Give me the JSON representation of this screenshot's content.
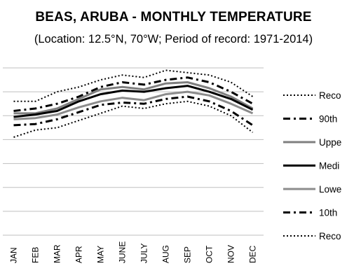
{
  "chart_data": {
    "type": "line",
    "title": "BEAS, ARUBA - MONTHLY TEMPERATURE",
    "subtitle": "(Location: 12.5°N, 70°W; Period of record: 1971-2014)",
    "categories": [
      "JAN",
      "FEB",
      "MAR",
      "APR",
      "MAY",
      "JUNE",
      "JULY",
      "AUG",
      "SEP",
      "OCT",
      "NOV",
      "DEC"
    ],
    "ylim": [
      0,
      7
    ],
    "grid": true,
    "legend_position": "right",
    "series": [
      {
        "name": "Reco",
        "style": "dotted",
        "color": "#000000",
        "width": 2,
        "values": [
          5.6,
          5.6,
          6.0,
          6.2,
          6.5,
          6.7,
          6.6,
          6.9,
          6.8,
          6.7,
          6.4,
          5.8
        ]
      },
      {
        "name": "90th",
        "style": "dashdot",
        "color": "#000000",
        "width": 3,
        "values": [
          5.2,
          5.3,
          5.5,
          5.8,
          6.2,
          6.4,
          6.3,
          6.5,
          6.6,
          6.4,
          6.0,
          5.5
        ]
      },
      {
        "name": "Uppe",
        "style": "solid",
        "color": "#7f7f7f",
        "width": 3,
        "values": [
          5.1,
          5.1,
          5.3,
          5.7,
          6.1,
          6.2,
          6.1,
          6.35,
          6.4,
          6.15,
          5.8,
          5.3
        ]
      },
      {
        "name": "Medi",
        "style": "solid",
        "color": "#000000",
        "width": 3,
        "values": [
          4.95,
          5.05,
          5.2,
          5.6,
          5.9,
          6.05,
          6.0,
          6.15,
          6.25,
          6.0,
          5.7,
          5.25
        ]
      },
      {
        "name": "Lowe",
        "style": "solid",
        "color": "#8c8c8c",
        "width": 3,
        "values": [
          4.85,
          4.9,
          5.05,
          5.35,
          5.6,
          5.75,
          5.65,
          5.9,
          6.0,
          5.85,
          5.5,
          5.1
        ]
      },
      {
        "name": "10th",
        "style": "dashdot",
        "color": "#000000",
        "width": 3,
        "values": [
          4.6,
          4.65,
          4.85,
          5.15,
          5.45,
          5.55,
          5.5,
          5.7,
          5.8,
          5.6,
          5.2,
          4.6
        ]
      },
      {
        "name": "Reco",
        "style": "dotted",
        "color": "#000000",
        "width": 2,
        "values": [
          4.1,
          4.4,
          4.5,
          4.8,
          5.1,
          5.4,
          5.3,
          5.5,
          5.6,
          5.4,
          5.0,
          4.3
        ]
      }
    ]
  }
}
